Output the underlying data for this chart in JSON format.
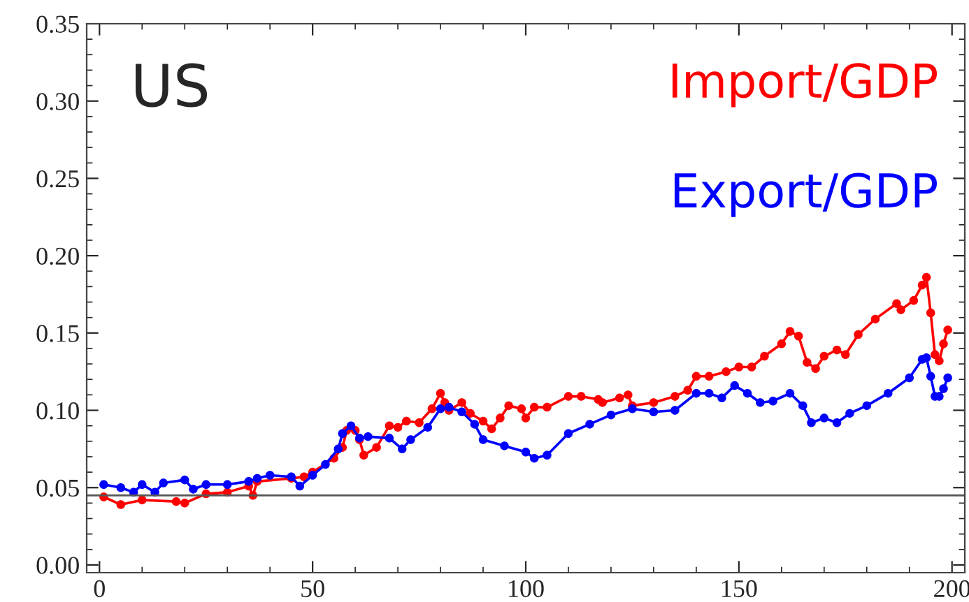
{
  "chart_data": {
    "type": "line",
    "title": "US",
    "series": [
      {
        "name": "Import/GDP",
        "color": "#ff0000",
        "x": [
          1,
          5,
          10,
          18,
          20,
          25,
          30,
          35,
          36,
          37,
          45,
          48,
          50,
          55,
          57,
          58,
          60,
          61,
          62,
          65,
          68,
          70,
          72,
          75,
          78,
          80,
          81,
          82,
          85,
          87,
          90,
          92,
          94,
          96,
          99,
          100,
          102,
          105,
          110,
          113,
          117,
          118,
          122,
          124,
          125,
          130,
          135,
          138,
          140,
          143,
          147,
          150,
          153,
          156,
          160,
          162,
          164,
          166,
          168,
          170,
          173,
          175,
          178,
          182,
          187,
          188,
          191,
          193,
          194,
          195,
          196,
          197,
          198,
          199
        ],
        "values": [
          0.044,
          0.039,
          0.042,
          0.041,
          0.04,
          0.046,
          0.047,
          0.051,
          0.045,
          0.054,
          0.056,
          0.057,
          0.06,
          0.069,
          0.076,
          0.087,
          0.087,
          0.081,
          0.071,
          0.076,
          0.09,
          0.089,
          0.093,
          0.092,
          0.101,
          0.111,
          0.105,
          0.1,
          0.105,
          0.098,
          0.093,
          0.088,
          0.095,
          0.103,
          0.101,
          0.095,
          0.102,
          0.102,
          0.109,
          0.109,
          0.107,
          0.105,
          0.108,
          0.11,
          0.103,
          0.105,
          0.109,
          0.113,
          0.122,
          0.122,
          0.125,
          0.128,
          0.128,
          0.135,
          0.143,
          0.151,
          0.148,
          0.131,
          0.127,
          0.135,
          0.139,
          0.136,
          0.149,
          0.159,
          0.169,
          0.165,
          0.171,
          0.181,
          0.186,
          0.163,
          0.136,
          0.132,
          0.143,
          0.152
        ]
      },
      {
        "name": "Export/GDP",
        "color": "#0000ff",
        "x": [
          1,
          5,
          8,
          10,
          13,
          15,
          20,
          22,
          25,
          30,
          35,
          37,
          40,
          45,
          47,
          50,
          53,
          56,
          57,
          59,
          61,
          63,
          68,
          71,
          73,
          77,
          80,
          82,
          85,
          88,
          90,
          95,
          100,
          102,
          105,
          110,
          115,
          120,
          125,
          130,
          135,
          140,
          143,
          146,
          149,
          152,
          155,
          158,
          162,
          165,
          167,
          170,
          173,
          176,
          180,
          185,
          190,
          193,
          194,
          195,
          196,
          197,
          198,
          199
        ],
        "values": [
          0.052,
          0.05,
          0.047,
          0.052,
          0.047,
          0.053,
          0.055,
          0.049,
          0.052,
          0.052,
          0.054,
          0.056,
          0.058,
          0.057,
          0.051,
          0.058,
          0.065,
          0.075,
          0.085,
          0.09,
          0.082,
          0.083,
          0.082,
          0.075,
          0.081,
          0.089,
          0.101,
          0.102,
          0.099,
          0.091,
          0.081,
          0.077,
          0.073,
          0.069,
          0.071,
          0.085,
          0.091,
          0.097,
          0.101,
          0.099,
          0.1,
          0.111,
          0.111,
          0.108,
          0.116,
          0.111,
          0.105,
          0.106,
          0.111,
          0.103,
          0.092,
          0.095,
          0.092,
          0.098,
          0.103,
          0.111,
          0.121,
          0.133,
          0.134,
          0.122,
          0.109,
          0.109,
          0.114,
          0.121
        ]
      }
    ],
    "xlim": [
      -3,
      203
    ],
    "xticks": [
      0,
      50,
      100,
      150,
      200
    ],
    "ylim": [
      -0.005,
      0.35
    ],
    "yticks": [
      {
        "value": 0,
        "label": "0.00"
      },
      {
        "value": 0.05,
        "label": "0.05"
      },
      {
        "value": 0.1,
        "label": "0.10"
      },
      {
        "value": 0.15,
        "label": "0.15"
      },
      {
        "value": 0.2,
        "label": "0.20"
      },
      {
        "value": 0.25,
        "label": "0.25"
      },
      {
        "value": 0.3,
        "label": "0.30"
      },
      {
        "value": 0.35,
        "label": "0.35"
      }
    ],
    "ref_lines": [
      {
        "axis": "y",
        "value": 0.045,
        "color": "#555555"
      }
    ],
    "marker": "circle",
    "line_style": "solid",
    "grid": false,
    "legend": "top right"
  }
}
